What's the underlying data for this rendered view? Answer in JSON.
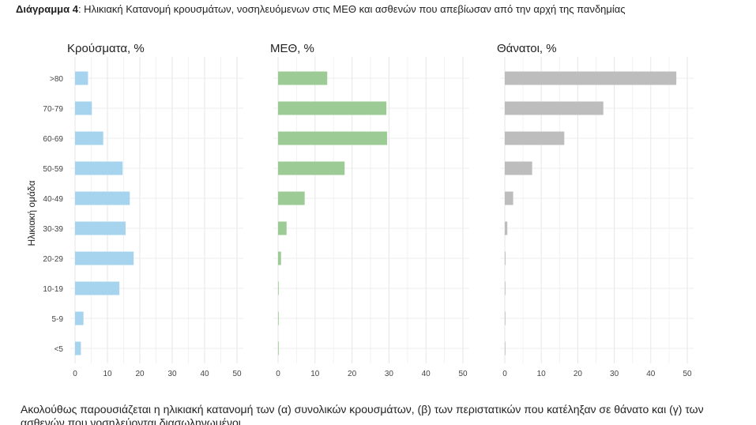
{
  "caption": {
    "label": "Διάγραμμα 4",
    "text": ": Ηλικιακή Κατανομή κρουσμάτων, νοσηλευόμενων στις ΜΕΘ και ασθενών που απεβίωσαν από την αρχή της πανδημίας"
  },
  "footer": {
    "line1": "Ακολούθως παρουσιάζεται η ηλικιακή κατανομή των (α) συνολικών κρουσμάτων, (β) των περιστατικών που κατέληξαν σε θάνατο και (γ) των",
    "line2": "ασθενών που νοσηλεύονται διασωληνωμένοι"
  },
  "chart_data": {
    "type": "bar",
    "orientation": "horizontal",
    "ylabel": "Ηλικιακή ομάδα",
    "categories": [
      ">80",
      "70-79",
      "60-69",
      "50-59",
      "40-49",
      "30-39",
      "20-29",
      "10-19",
      "5-9",
      "<5"
    ],
    "xlim": [
      0,
      50
    ],
    "xticks": [
      0,
      10,
      20,
      30,
      40,
      50
    ],
    "grid": true,
    "panels": [
      {
        "title": "Κρούσματα, %",
        "color": "#a6d4ee",
        "values": [
          4.0,
          5.2,
          8.7,
          14.7,
          16.9,
          15.6,
          18.1,
          13.7,
          2.6,
          1.8
        ]
      },
      {
        "title": "ΜΕΘ, %",
        "color": "#9ccb96",
        "values": [
          13.3,
          29.3,
          29.5,
          18.0,
          7.2,
          2.3,
          0.8,
          0.1,
          0.1,
          0.1
        ]
      },
      {
        "title": "Θάνατοι, %",
        "color": "#bdbdbd",
        "values": [
          47.0,
          27.0,
          16.3,
          7.5,
          2.3,
          0.7,
          0.2,
          0.05,
          0.03,
          0.03
        ]
      }
    ]
  }
}
